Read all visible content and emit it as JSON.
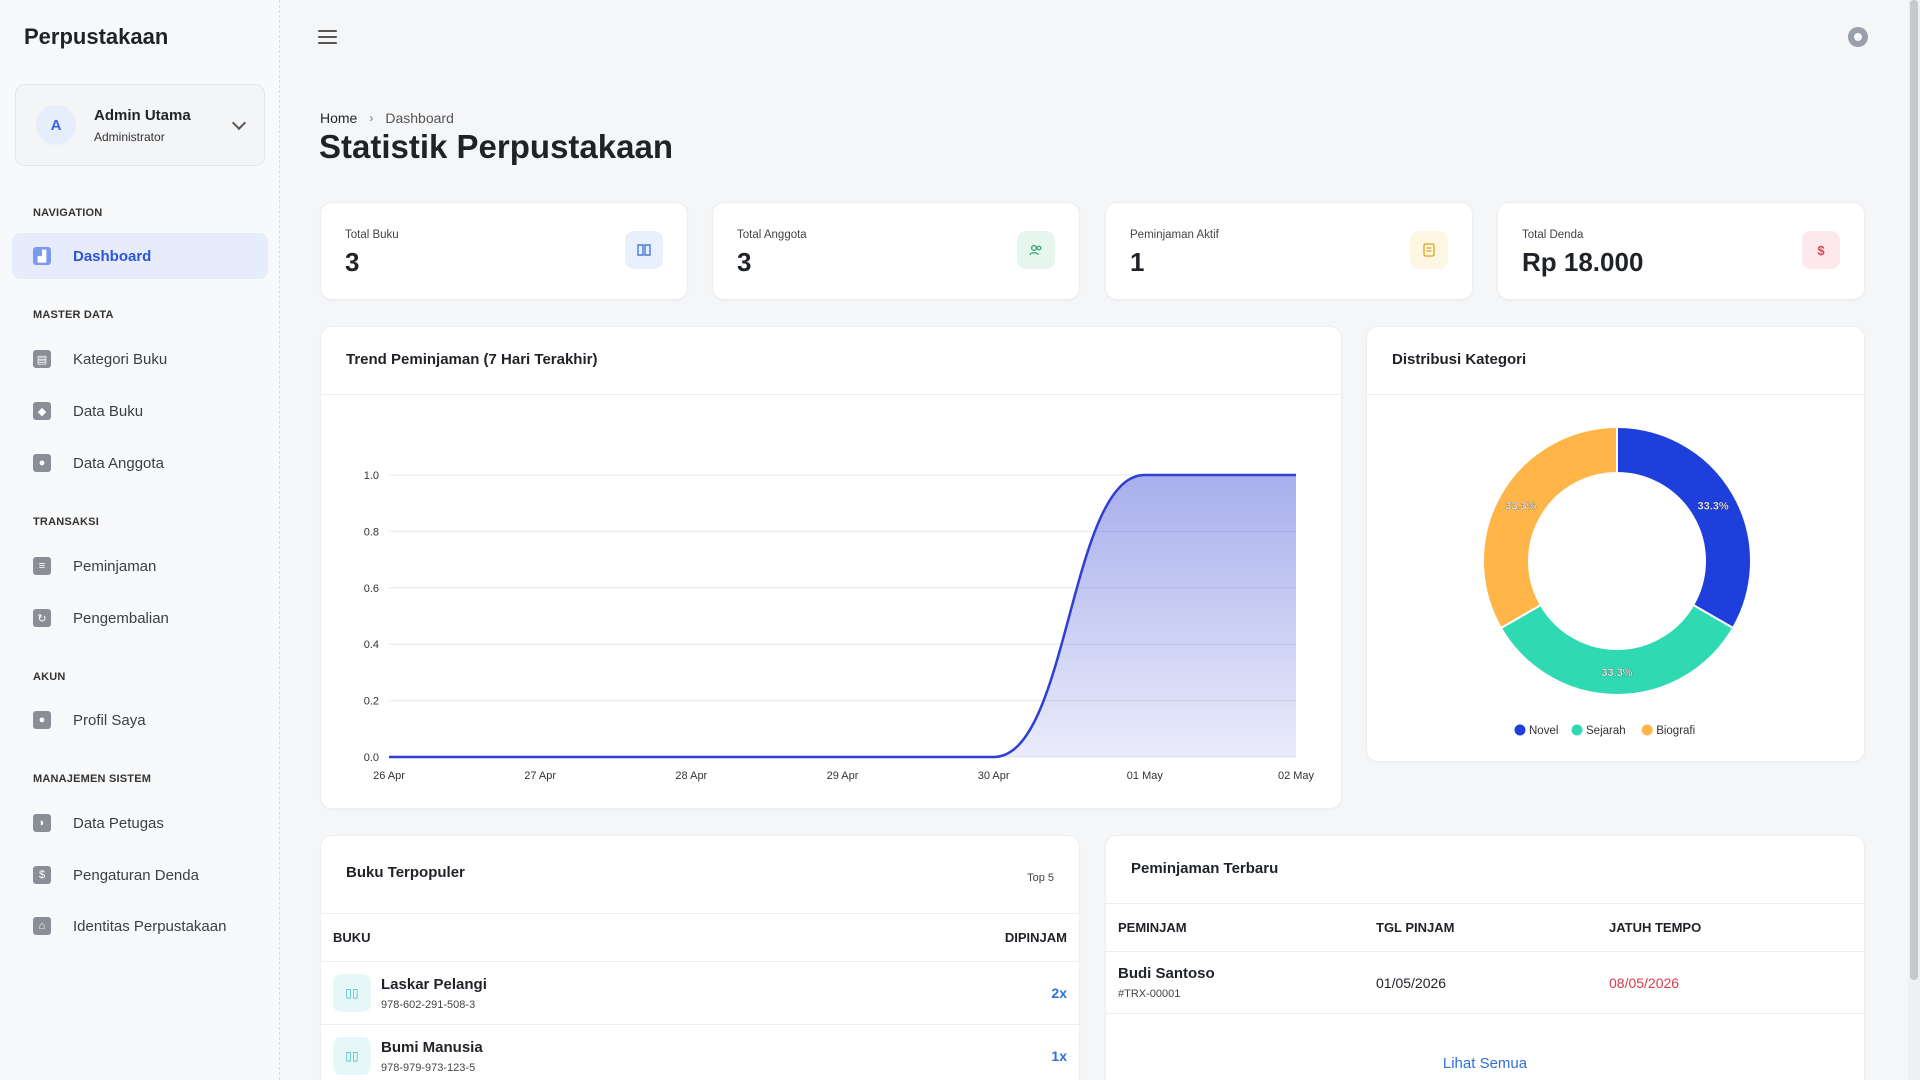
{
  "brand": "Perpustakaan",
  "user": {
    "initial": "A",
    "name": "Admin Utama",
    "role": "Administrator"
  },
  "nav": {
    "section_navigation": "NAVIGATION",
    "dashboard": "Dashboard",
    "section_master": "MASTER DATA",
    "kategori_buku": "Kategori Buku",
    "data_buku": "Data Buku",
    "data_anggota": "Data Anggota",
    "section_transaksi": "TRANSAKSI",
    "peminjaman": "Peminjaman",
    "pengembalian": "Pengembalian",
    "section_akun": "AKUN",
    "profil_saya": "Profil Saya",
    "section_sistem": "MANAJEMEN SISTEM",
    "data_petugas": "Data Petugas",
    "pengaturan_denda": "Pengaturan Denda",
    "identitas_perpustakaan": "Identitas Perpustakaan"
  },
  "breadcrumb": {
    "home": "Home",
    "current": "Dashboard"
  },
  "page_title": "Statistik Perpustakaan",
  "stats": [
    {
      "label": "Total Buku",
      "value": "3",
      "icon": "book-icon",
      "color": "#4a78d9",
      "bg": "#e8f0fb"
    },
    {
      "label": "Total Anggota",
      "value": "3",
      "icon": "users-icon",
      "color": "#2fa27a",
      "bg": "#e6f6ef"
    },
    {
      "label": "Peminjaman Aktif",
      "value": "1",
      "icon": "clipboard-icon",
      "color": "#e0a418",
      "bg": "#fdf6e3"
    },
    {
      "label": "Total Denda",
      "value": "Rp 18.000",
      "icon": "dollar-icon",
      "symbol": "$",
      "color": "#e0455b",
      "bg": "#fde8eb"
    }
  ],
  "trend_title": "Trend Peminjaman (7 Hari Terakhir)",
  "category_title": "Distribusi Kategori",
  "chart_data": [
    {
      "type": "area",
      "title": "Trend Peminjaman (7 Hari Terakhir)",
      "x": [
        "26 Apr",
        "27 Apr",
        "28 Apr",
        "29 Apr",
        "30 Apr",
        "01 May",
        "02 May"
      ],
      "series": [
        {
          "values": [
            0,
            0,
            0,
            0,
            0,
            1,
            1
          ]
        }
      ],
      "ylim": [
        0,
        1.0
      ],
      "yticks": [
        "0.0",
        "0.2",
        "0.4",
        "0.6",
        "0.8",
        "1.0"
      ],
      "grid": true,
      "color": "#2f3fd1"
    },
    {
      "type": "pie",
      "title": "Distribusi Kategori",
      "labels": [
        "Novel",
        "Sejarah",
        "Biografi"
      ],
      "values": [
        33.3,
        33.3,
        33.3
      ],
      "value_labels": [
        "33.3%",
        "33.3%",
        "33.3%"
      ],
      "colors": [
        "#1f3fdc",
        "#2fd9b2",
        "#ffb547"
      ],
      "legend": "bottom"
    }
  ],
  "popular": {
    "title": "Buku Terpopuler",
    "badge": "Top 5",
    "col_book": "BUKU",
    "col_count": "DIPINJAM",
    "rows": [
      {
        "title": "Laskar Pelangi",
        "isbn": "978-602-291-508-3",
        "count": "2x"
      },
      {
        "title": "Bumi Manusia",
        "isbn": "978-979-973-123-5",
        "count": "1x"
      }
    ]
  },
  "recent": {
    "title": "Peminjaman Terbaru",
    "col_borrower": "PEMINJAM",
    "col_date": "TGL PINJAM",
    "col_due": "JATUH TEMPO",
    "rows": [
      {
        "name": "Budi Santoso",
        "code": "#TRX-00001",
        "date": "01/05/2026",
        "due": "08/05/2026"
      }
    ],
    "due_color": "#d93a4a",
    "see_all": "Lihat Semua"
  }
}
